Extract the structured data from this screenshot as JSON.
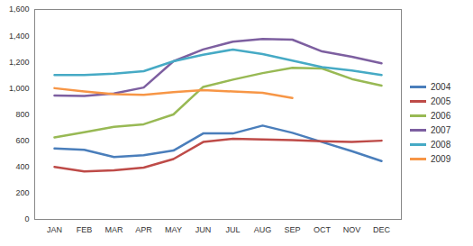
{
  "chart_data": {
    "type": "line",
    "categories": [
      "JAN",
      "FEB",
      "MAR",
      "APR",
      "MAY",
      "JUN",
      "JUL",
      "AUG",
      "SEP",
      "OCT",
      "NOV",
      "DEC"
    ],
    "series": [
      {
        "name": "2004",
        "color": "#4a7ebb",
        "values": [
          540,
          530,
          475,
          490,
          525,
          655,
          655,
          715,
          660,
          590,
          520,
          445
        ]
      },
      {
        "name": "2005",
        "color": "#be4b48",
        "values": [
          400,
          365,
          375,
          395,
          460,
          590,
          615,
          610,
          605,
          595,
          590,
          600
        ]
      },
      {
        "name": "2006",
        "color": "#98b954",
        "values": [
          625,
          665,
          705,
          725,
          800,
          1010,
          1065,
          1115,
          1155,
          1150,
          1070,
          1020
        ]
      },
      {
        "name": "2007",
        "color": "#7d5fa0",
        "values": [
          945,
          940,
          960,
          1005,
          1205,
          1295,
          1355,
          1375,
          1370,
          1280,
          1240,
          1190
        ]
      },
      {
        "name": "2008",
        "color": "#46aac5",
        "values": [
          1100,
          1100,
          1110,
          1130,
          1205,
          1255,
          1295,
          1260,
          1210,
          1160,
          1135,
          1100
        ]
      },
      {
        "name": "2009",
        "color": "#f79646",
        "values": [
          1000,
          975,
          955,
          950,
          970,
          985,
          975,
          965,
          925,
          null,
          null,
          null
        ]
      }
    ],
    "ylim": [
      0,
      1600
    ],
    "yticks": [
      0,
      200,
      400,
      600,
      800,
      1000,
      1200,
      1400,
      1600
    ],
    "grid": false,
    "legend": "right"
  }
}
